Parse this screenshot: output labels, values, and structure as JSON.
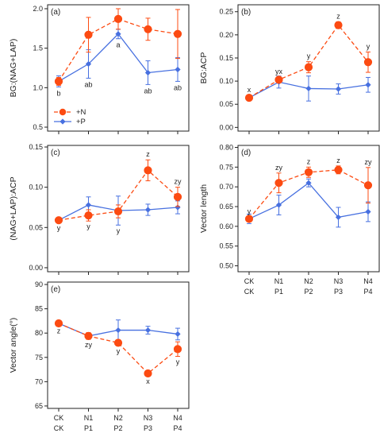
{
  "colors": {
    "N": "#fc4b12",
    "P": "#4770e0",
    "axis": "#222222"
  },
  "legend": {
    "N_label": "+N",
    "P_label": "+P"
  },
  "x_labels": {
    "row1": [
      "CK",
      "N1",
      "N2",
      "N3",
      "N4"
    ],
    "row2": [
      "CK",
      "P1",
      "P2",
      "P3",
      "P4"
    ]
  },
  "chart_data": [
    {
      "panel": "(a)",
      "type": "line",
      "ylabel": "BG:(NAG+LAP)",
      "ylim": [
        0.45,
        2.05
      ],
      "yticks": [
        "0.5",
        "1.0",
        "1.5",
        "2.0"
      ],
      "series": [
        {
          "name": "+N",
          "values": [
            1.08,
            1.67,
            1.87,
            1.74,
            1.68
          ],
          "err": [
            0.05,
            0.22,
            0.13,
            0.14,
            0.31
          ]
        },
        {
          "name": "+P",
          "values": [
            1.08,
            1.3,
            1.68,
            1.19,
            1.23
          ],
          "err": [
            0.07,
            0.18,
            0.06,
            0.15,
            0.15
          ]
        }
      ],
      "labels": [
        "b",
        "ab",
        "a",
        "ab",
        "ab"
      ],
      "label_series": "+P",
      "label_pos": "below"
    },
    {
      "panel": "(b)",
      "type": "line",
      "ylabel": "BG:ACP",
      "ylim": [
        -0.008,
        0.265
      ],
      "yticks": [
        "0.00",
        "0.05",
        "0.10",
        "0.15",
        "0.20",
        "0.25"
      ],
      "series": [
        {
          "name": "+N",
          "values": [
            0.064,
            0.103,
            0.13,
            0.221,
            0.141
          ],
          "err": [
            0.005,
            0.006,
            0.012,
            0.007,
            0.022
          ]
        },
        {
          "name": "+P",
          "values": [
            0.064,
            0.098,
            0.084,
            0.083,
            0.092
          ],
          "err": [
            0.006,
            0.013,
            0.027,
            0.011,
            0.016
          ]
        }
      ],
      "labels": [
        "x",
        "yx",
        "y",
        "z",
        "y"
      ],
      "label_series": "+N",
      "label_pos": "above"
    },
    {
      "panel": "(c)",
      "type": "line",
      "ylabel": "(NAG+LAP):ACP",
      "ylim": [
        -0.005,
        0.152
      ],
      "yticks": [
        "0.00",
        "0.05",
        "0.10",
        "0.15"
      ],
      "series": [
        {
          "name": "+N",
          "values": [
            0.059,
            0.065,
            0.07,
            0.121,
            0.088
          ],
          "err": [
            0.003,
            0.007,
            0.008,
            0.013,
            0.012
          ]
        },
        {
          "name": "+P",
          "values": [
            0.059,
            0.078,
            0.071,
            0.072,
            0.075
          ],
          "err": [
            0.003,
            0.01,
            0.018,
            0.007,
            0.008
          ]
        }
      ],
      "labels": [
        "y",
        "y",
        "y",
        "z",
        "zy"
      ],
      "label_series": "mixed",
      "label_pos": "auto"
    },
    {
      "panel": "(d)",
      "type": "line",
      "ylabel": "Vector length",
      "ylim": [
        0.485,
        0.805
      ],
      "yticks": [
        "0.50",
        "0.55",
        "0.60",
        "0.65",
        "0.70",
        "0.75",
        "0.80"
      ],
      "series": [
        {
          "name": "+N",
          "values": [
            0.619,
            0.71,
            0.737,
            0.743,
            0.704
          ],
          "err": [
            0.005,
            0.025,
            0.013,
            0.01,
            0.045
          ]
        },
        {
          "name": "+P",
          "values": [
            0.619,
            0.654,
            0.71,
            0.623,
            0.637
          ],
          "err": [
            0.012,
            0.025,
            0.01,
            0.025,
            0.025
          ]
        }
      ],
      "labels": [
        "y",
        "zy",
        "z",
        "z",
        "zy"
      ],
      "label_series": "+N",
      "label_pos": "above"
    },
    {
      "panel": "(e)",
      "type": "line",
      "ylabel": "Vector angle(°)",
      "ylim": [
        64.5,
        90.5
      ],
      "yticks": [
        "65",
        "70",
        "75",
        "80",
        "85",
        "90"
      ],
      "series": [
        {
          "name": "+N",
          "values": [
            82.0,
            79.4,
            78.0,
            71.7,
            76.7
          ],
          "err": [
            0.4,
            0.7,
            0.6,
            0.5,
            1.5
          ]
        },
        {
          "name": "+P",
          "values": [
            82.0,
            79.4,
            80.6,
            80.6,
            79.8
          ],
          "err": [
            0.4,
            0.5,
            2.1,
            0.8,
            1.2
          ]
        }
      ],
      "labels": [
        "z",
        "zy",
        "y",
        "x",
        "y"
      ],
      "label_series": "+N",
      "label_pos": "below"
    }
  ]
}
